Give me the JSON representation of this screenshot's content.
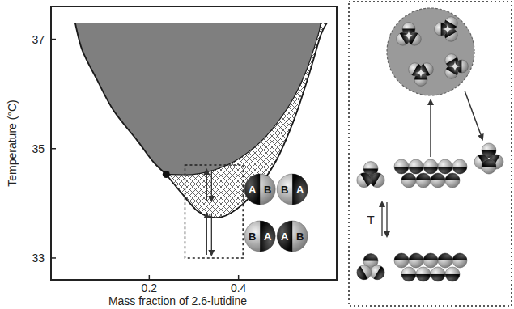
{
  "chart_data": {
    "type": "area",
    "x_label": "Mass fraction of 2.6-lutidine",
    "y_label": "Temperature (°C)",
    "xlim": [
      -0.02,
      0.62
    ],
    "ylim": [
      32.6,
      37.6
    ],
    "xticks": [
      0.2,
      0.4
    ],
    "yticks": [
      33,
      35,
      37
    ],
    "series": [
      {
        "color": "#7f7f7f",
        "x": [
          0.034,
          0.05,
          0.083,
          0.12,
          0.173,
          0.21,
          0.238
        ],
        "values": [
          37.3,
          36.8,
          36.26,
          35.7,
          35.15,
          34.75,
          34.53
        ]
      },
      {
        "color": "#7f7f7f",
        "x": [
          0.238,
          0.299,
          0.353,
          0.407,
          0.461,
          0.515,
          0.551,
          0.578,
          0.584
        ],
        "values": [
          34.53,
          34.53,
          34.63,
          34.85,
          35.22,
          35.81,
          36.41,
          37.07,
          37.3
        ]
      },
      {
        "color": "#444444",
        "x": [
          0.238,
          0.272,
          0.308,
          0.344,
          0.38,
          0.425,
          0.479,
          0.524,
          0.56,
          0.584,
          0.598
        ],
        "values": [
          34.53,
          34.19,
          33.86,
          33.74,
          33.81,
          34.11,
          34.7,
          35.52,
          36.41,
          37.07,
          37.3
        ]
      }
    ],
    "critical_point": {
      "x": 0.238,
      "y": 34.53
    },
    "highlight_box": {
      "x": [
        0.28,
        0.41
      ],
      "y": [
        33.0,
        34.7
      ]
    },
    "particle_labels": [
      [
        "A",
        "B"
      ],
      [
        "B",
        "A"
      ],
      [
        "B",
        "A"
      ],
      [
        "A",
        "B"
      ]
    ],
    "schematic_label": "T"
  }
}
